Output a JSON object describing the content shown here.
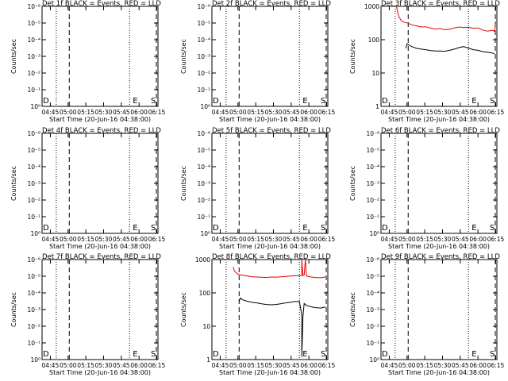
{
  "figure": {
    "colors": {
      "events": "#000000",
      "lld": "#e00000",
      "axes": "#000000",
      "background": "#ffffff"
    }
  },
  "chart_data": [
    {
      "type": "line",
      "title": "Det 1f BLACK = Events, RED = LLD",
      "ylabel": "Counts/sec",
      "xlabel": "Start Time (20-Jun-16 04:38:00)",
      "y_scale": "log",
      "y_ticks": [
        "10⁰",
        "10⁻¹",
        "10⁻²",
        "10⁻³",
        "10⁻⁴",
        "10⁻⁵",
        "10⁻⁶"
      ],
      "x_ticks": [
        "04:45",
        "05:00",
        "05:15",
        "05:30",
        "05:45",
        "06:00",
        "06:15"
      ],
      "markers": [
        {
          "label": "D",
          "x": "04:38"
        },
        {
          "label": "E",
          "x": "05:54"
        },
        {
          "label": "S",
          "x": "06:12"
        }
      ],
      "vlines": [
        {
          "style": "dotted",
          "x": "04:50"
        },
        {
          "style": "dashed",
          "x": "05:01"
        },
        {
          "style": "dotted",
          "x": "05:52"
        },
        {
          "style": "dashed",
          "x": "06:15"
        }
      ],
      "series": []
    },
    {
      "type": "line",
      "title": "Det 2f BLACK = Events, RED = LLD",
      "ylabel": "Counts/sec",
      "xlabel": "Start Time (20-Jun-16 04:38:00)",
      "y_scale": "log",
      "y_ticks": [
        "10⁰",
        "10⁻¹",
        "10⁻²",
        "10⁻³",
        "10⁻⁴",
        "10⁻⁵",
        "10⁻⁶"
      ],
      "x_ticks": [
        "04:45",
        "05:00",
        "05:15",
        "05:30",
        "05:45",
        "06:00",
        "06:15"
      ],
      "markers": [
        {
          "label": "D",
          "x": "04:38"
        },
        {
          "label": "E",
          "x": "05:54"
        },
        {
          "label": "S",
          "x": "06:12"
        }
      ],
      "vlines": [
        {
          "style": "dotted",
          "x": "04:50"
        },
        {
          "style": "dashed",
          "x": "05:01"
        },
        {
          "style": "dotted",
          "x": "05:52"
        },
        {
          "style": "dashed",
          "x": "06:15"
        }
      ],
      "series": []
    },
    {
      "type": "line",
      "title": "Det 3f BLACK = Events, RED = LLD",
      "ylabel": "Counts/sec",
      "xlabel": "Start Time (20-Jun-16 04:38:00)",
      "y_scale": "log",
      "y_ticks": [
        "1",
        "10",
        "100",
        "1000"
      ],
      "ylim": [
        1,
        1000
      ],
      "x_ticks": [
        "04:45",
        "05:00",
        "05:15",
        "05:30",
        "05:45",
        "06:00",
        "06:15"
      ],
      "markers": [
        {
          "label": "D",
          "x": "04:38"
        },
        {
          "label": "E",
          "x": "05:54"
        },
        {
          "label": "S",
          "x": "06:12"
        }
      ],
      "vlines": [
        {
          "style": "dotted",
          "x": "04:50"
        },
        {
          "style": "dashed",
          "x": "05:01"
        },
        {
          "style": "dotted",
          "x": "05:52"
        },
        {
          "style": "dashed",
          "x": "06:15"
        }
      ],
      "series": [
        {
          "color": "#e00000",
          "x": [
            "04:51",
            "04:53",
            "04:55",
            "04:57",
            "05:00",
            "05:04",
            "05:08",
            "05:12",
            "05:16",
            "05:20",
            "05:24",
            "05:28",
            "05:32",
            "05:36",
            "05:40",
            "05:44",
            "05:48",
            "05:52",
            "05:56",
            "06:00",
            "06:04",
            "06:08",
            "06:12",
            "06:14",
            "06:15"
          ],
          "y": [
            1000,
            500,
            380,
            340,
            320,
            280,
            260,
            240,
            245,
            220,
            210,
            215,
            200,
            205,
            225,
            240,
            230,
            235,
            220,
            225,
            195,
            180,
            190,
            180,
            350
          ]
        },
        {
          "color": "#000000",
          "x": [
            "04:59",
            "05:00",
            "05:02",
            "05:04",
            "05:08",
            "05:12",
            "05:16",
            "05:20",
            "05:24",
            "05:28",
            "05:32",
            "05:36",
            "05:40",
            "05:44",
            "05:48",
            "05:52",
            "05:56",
            "06:00",
            "06:04",
            "06:08",
            "06:12",
            "06:14"
          ],
          "y": [
            55,
            75,
            68,
            62,
            55,
            52,
            50,
            47,
            46,
            46,
            45,
            48,
            52,
            58,
            62,
            56,
            50,
            48,
            44,
            42,
            40,
            38
          ]
        }
      ]
    },
    {
      "type": "line",
      "title": "Det 4f BLACK = Events, RED = LLD",
      "ylabel": "Counts/sec",
      "xlabel": "Start Time (20-Jun-16 04:38:00)",
      "y_scale": "log",
      "y_ticks": [
        "10⁰",
        "10⁻¹",
        "10⁻²",
        "10⁻³",
        "10⁻⁴",
        "10⁻⁵",
        "10⁻⁶"
      ],
      "x_ticks": [
        "04:45",
        "05:00",
        "05:15",
        "05:30",
        "05:45",
        "06:00",
        "06:15"
      ],
      "markers": [
        {
          "label": "D",
          "x": "04:38"
        },
        {
          "label": "E",
          "x": "05:54"
        },
        {
          "label": "S",
          "x": "06:12"
        }
      ],
      "vlines": [
        {
          "style": "dotted",
          "x": "04:50"
        },
        {
          "style": "dashed",
          "x": "05:01"
        },
        {
          "style": "dotted",
          "x": "05:52"
        },
        {
          "style": "dashed",
          "x": "06:15"
        }
      ],
      "series": []
    },
    {
      "type": "line",
      "title": "Det 5f BLACK = Events, RED = LLD",
      "ylabel": "Counts/sec",
      "xlabel": "Start Time (20-Jun-16 04:38:00)",
      "y_scale": "log",
      "y_ticks": [
        "10⁰",
        "10⁻¹",
        "10⁻²",
        "10⁻³",
        "10⁻⁴",
        "10⁻⁵",
        "10⁻⁶"
      ],
      "x_ticks": [
        "04:45",
        "05:00",
        "05:15",
        "05:30",
        "05:45",
        "06:00",
        "06:15"
      ],
      "markers": [
        {
          "label": "D",
          "x": "04:38"
        },
        {
          "label": "E",
          "x": "05:54"
        },
        {
          "label": "S",
          "x": "06:12"
        }
      ],
      "vlines": [
        {
          "style": "dotted",
          "x": "04:50"
        },
        {
          "style": "dashed",
          "x": "05:01"
        },
        {
          "style": "dotted",
          "x": "05:52"
        },
        {
          "style": "dashed",
          "x": "06:15"
        }
      ],
      "series": []
    },
    {
      "type": "line",
      "title": "Det 6f BLACK = Events, RED = LLD",
      "ylabel": "Counts/sec",
      "xlabel": "Start Time (20-Jun-16 04:38:00)",
      "y_scale": "log",
      "y_ticks": [
        "10⁰",
        "10⁻¹",
        "10⁻²",
        "10⁻³",
        "10⁻⁴",
        "10⁻⁵",
        "10⁻⁶"
      ],
      "x_ticks": [
        "04:45",
        "05:00",
        "05:15",
        "05:30",
        "05:45",
        "06:00",
        "06:15"
      ],
      "markers": [
        {
          "label": "D",
          "x": "04:38"
        },
        {
          "label": "E",
          "x": "05:54"
        },
        {
          "label": "S",
          "x": "06:12"
        }
      ],
      "vlines": [
        {
          "style": "dotted",
          "x": "04:50"
        },
        {
          "style": "dashed",
          "x": "05:01"
        },
        {
          "style": "dotted",
          "x": "05:52"
        },
        {
          "style": "dashed",
          "x": "06:15"
        }
      ],
      "series": []
    },
    {
      "type": "line",
      "title": "Det 7f BLACK = Events, RED = LLD",
      "ylabel": "Counts/sec",
      "xlabel": "Start Time (20-Jun-16 04:38:00)",
      "y_scale": "log",
      "y_ticks": [
        "10⁰",
        "10⁻¹",
        "10⁻²",
        "10⁻³",
        "10⁻⁴",
        "10⁻⁵",
        "10⁻⁶"
      ],
      "x_ticks": [
        "04:45",
        "05:00",
        "05:15",
        "05:30",
        "05:45",
        "06:00",
        "06:15"
      ],
      "markers": [
        {
          "label": "D",
          "x": "04:38"
        },
        {
          "label": "E",
          "x": "05:54"
        },
        {
          "label": "S",
          "x": "06:12"
        }
      ],
      "vlines": [
        {
          "style": "dotted",
          "x": "04:50"
        },
        {
          "style": "dashed",
          "x": "05:01"
        },
        {
          "style": "dotted",
          "x": "05:52"
        },
        {
          "style": "dashed",
          "x": "06:15"
        }
      ],
      "series": []
    },
    {
      "type": "line",
      "title": "Det 8f BLACK = Events, RED = LLD",
      "ylabel": "Counts/sec",
      "xlabel": "Start Time (20-Jun-16 04:38:00)",
      "y_scale": "log",
      "y_ticks": [
        "1",
        "10",
        "100",
        "1000"
      ],
      "ylim": [
        1,
        1000
      ],
      "x_ticks": [
        "04:45",
        "05:00",
        "05:15",
        "05:30",
        "05:45",
        "06:00",
        "06:15"
      ],
      "markers": [
        {
          "label": "D",
          "x": "04:38"
        },
        {
          "label": "E",
          "x": "05:54"
        },
        {
          "label": "S",
          "x": "06:12"
        }
      ],
      "vlines": [
        {
          "style": "dotted",
          "x": "04:50"
        },
        {
          "style": "dashed",
          "x": "05:01"
        },
        {
          "style": "dotted",
          "x": "05:52"
        },
        {
          "style": "dashed",
          "x": "06:15"
        }
      ],
      "series": [
        {
          "color": "#e00000",
          "x": [
            "04:56",
            "04:57",
            "05:00",
            "05:04",
            "05:08",
            "05:12",
            "05:16",
            "05:20",
            "05:24",
            "05:28",
            "05:32",
            "05:36",
            "05:40",
            "05:44",
            "05:48",
            "05:52",
            "05:54",
            "05:54",
            "05:55",
            "05:56",
            "05:57",
            "05:58",
            "06:02",
            "06:06",
            "06:10",
            "06:14"
          ],
          "y": [
            600,
            450,
            360,
            340,
            320,
            305,
            300,
            295,
            290,
            300,
            295,
            305,
            310,
            320,
            325,
            330,
            330,
            1000,
            330,
            340,
            1000,
            320,
            300,
            290,
            285,
            300
          ]
        },
        {
          "color": "#000000",
          "x": [
            "05:01",
            "05:02",
            "05:04",
            "05:08",
            "05:12",
            "05:16",
            "05:20",
            "05:24",
            "05:28",
            "05:32",
            "05:36",
            "05:40",
            "05:44",
            "05:48",
            "05:52",
            "05:54",
            "05:54",
            "05:55",
            "05:56",
            "05:58",
            "06:02",
            "06:06",
            "06:10",
            "06:14"
          ],
          "y": [
            55,
            70,
            62,
            56,
            52,
            50,
            47,
            45,
            44,
            45,
            47,
            50,
            52,
            55,
            55,
            22,
            1.2,
            20,
            48,
            42,
            38,
            36,
            35,
            38
          ]
        }
      ]
    },
    {
      "type": "line",
      "title": "Det 9f BLACK = Events, RED = LLD",
      "ylabel": "Counts/sec",
      "xlabel": "Start Time (20-Jun-16 04:38:00)",
      "y_scale": "log",
      "y_ticks": [
        "10⁰",
        "10⁻¹",
        "10⁻²",
        "10⁻³",
        "10⁻⁴",
        "10⁻⁵",
        "10⁻⁶"
      ],
      "x_ticks": [
        "04:45",
        "05:00",
        "05:15",
        "05:30",
        "05:45",
        "06:00",
        "06:15"
      ],
      "markers": [
        {
          "label": "D",
          "x": "04:38"
        },
        {
          "label": "E",
          "x": "05:54"
        },
        {
          "label": "S",
          "x": "06:12"
        }
      ],
      "vlines": [
        {
          "style": "dotted",
          "x": "04:50"
        },
        {
          "style": "dashed",
          "x": "05:01"
        },
        {
          "style": "dotted",
          "x": "05:52"
        },
        {
          "style": "dashed",
          "x": "06:15"
        }
      ],
      "series": []
    }
  ]
}
